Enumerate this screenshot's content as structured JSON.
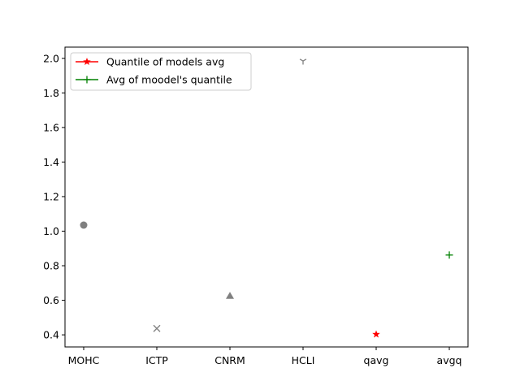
{
  "chart_data": {
    "type": "scatter",
    "categories": [
      "MOHC",
      "ICTP",
      "CNRM",
      "HCLI",
      "qavg",
      "avgq"
    ],
    "ylim": [
      0.33,
      2.065
    ],
    "yticks": [
      0.4,
      0.6,
      0.8,
      1.0,
      1.2,
      1.4,
      1.6,
      1.8,
      2.0
    ],
    "ytick_labels": [
      "0.4",
      "0.6",
      "0.8",
      "1.0",
      "1.2",
      "1.4",
      "1.6",
      "1.8",
      "2.0"
    ],
    "grid": false,
    "legend_position": "top-left",
    "points": [
      {
        "category": "MOHC",
        "value": 1.035,
        "marker": "circle",
        "color": "#808080"
      },
      {
        "category": "ICTP",
        "value": 0.437,
        "marker": "x",
        "color": "#808080"
      },
      {
        "category": "CNRM",
        "value": 0.625,
        "marker": "triangle",
        "color": "#808080"
      },
      {
        "category": "HCLI",
        "value": 1.985,
        "marker": "tri-down",
        "color": "#808080"
      },
      {
        "category": "qavg",
        "value": 0.403,
        "marker": "star",
        "color": "#ff0000"
      },
      {
        "category": "avgq",
        "value": 0.862,
        "marker": "plus",
        "color": "#008000"
      }
    ],
    "legend": [
      {
        "label": "Quantile of models avg",
        "marker": "star",
        "color": "#ff0000"
      },
      {
        "label": "Avg of moodel's quantile",
        "marker": "plus",
        "color": "#008000"
      }
    ]
  }
}
